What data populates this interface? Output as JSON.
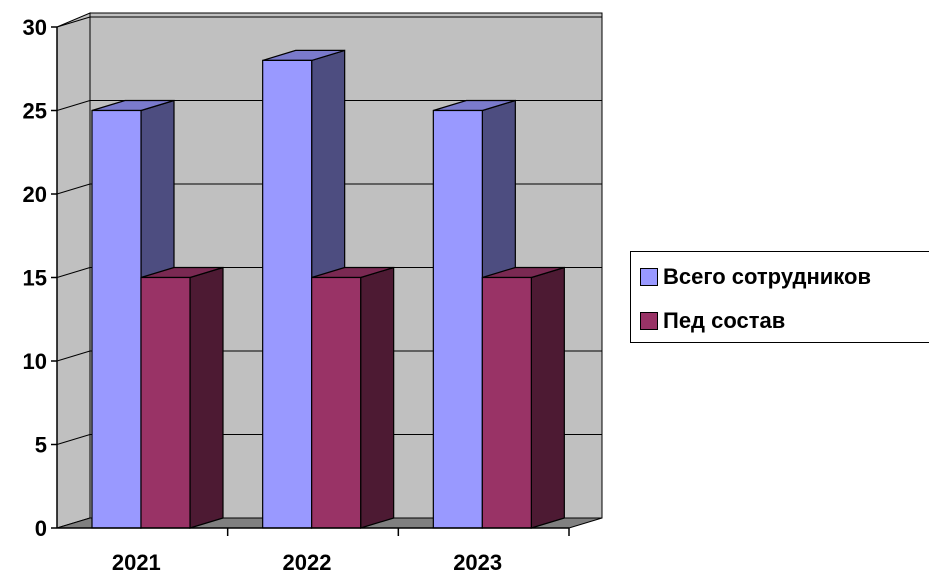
{
  "chart_data": {
    "type": "bar",
    "categories": [
      "2021",
      "2022",
      "2023"
    ],
    "series": [
      {
        "name": "Всего сотрудников",
        "values": [
          25,
          28,
          25
        ],
        "color": "#9999ff"
      },
      {
        "name": "Пед состав",
        "values": [
          15,
          15,
          15
        ],
        "color": "#993366"
      }
    ],
    "ylim": [
      0,
      30
    ],
    "yticks": [
      "0",
      "5",
      "10",
      "15",
      "20",
      "25",
      "30"
    ],
    "grid": true,
    "legend_position": "right",
    "style": "3d-clustered-column",
    "wall_color": "#c0c0c0",
    "floor_color": "#808080"
  }
}
